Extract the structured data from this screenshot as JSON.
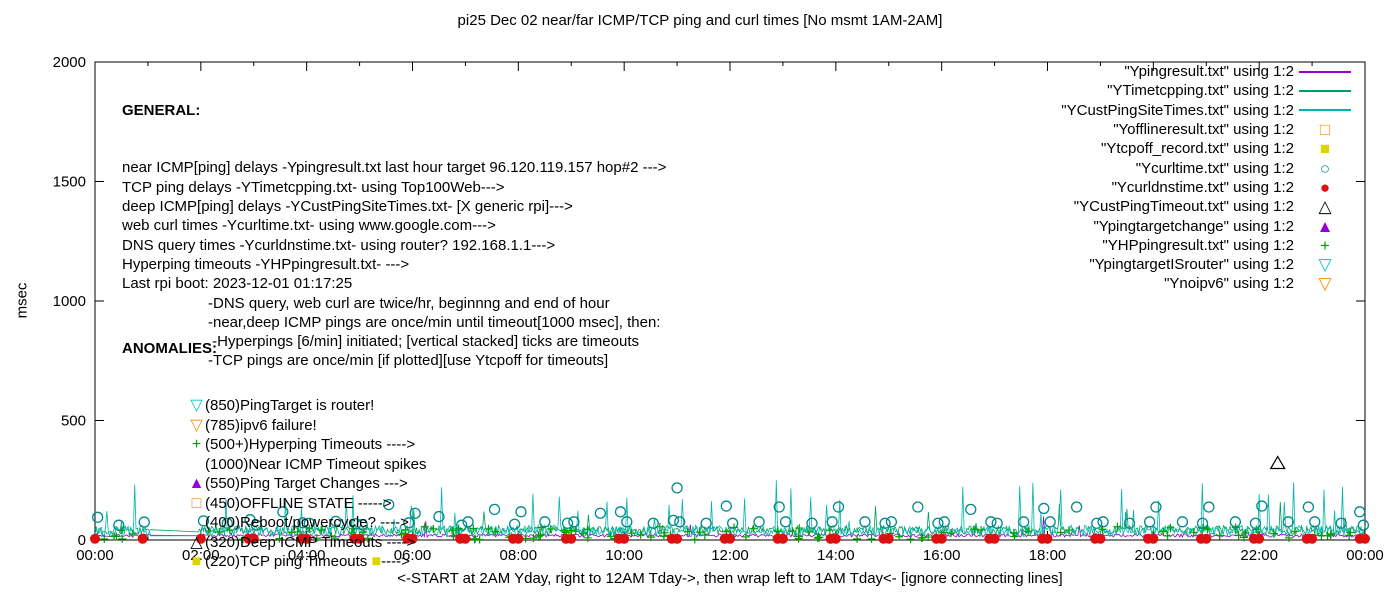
{
  "chart_data": {
    "type": "line",
    "title": "pi25 Dec 02  near/far ICMP/TCP ping and curl times [No msmt 1AM-2AM]",
    "xlabel": "<-START at 2AM Yday, right to 12AM Tday->, then wrap left to 1AM Tday<- [ignore connecting lines]",
    "ylabel": "msec",
    "xlim": [
      0,
      24
    ],
    "ylim": [
      0,
      2000
    ],
    "grid": false,
    "legend_position": "top-right",
    "x_ticks": [
      {
        "t": 0,
        "label": "00:00"
      },
      {
        "t": 2,
        "label": "02:00"
      },
      {
        "t": 4,
        "label": "04:00"
      },
      {
        "t": 6,
        "label": "06:00"
      },
      {
        "t": 8,
        "label": "08:00"
      },
      {
        "t": 10,
        "label": "10:00"
      },
      {
        "t": 12,
        "label": "12:00"
      },
      {
        "t": 14,
        "label": "14:00"
      },
      {
        "t": 16,
        "label": "16:00"
      },
      {
        "t": 18,
        "label": "18:00"
      },
      {
        "t": 20,
        "label": "20:00"
      },
      {
        "t": 22,
        "label": "22:00"
      },
      {
        "t": 24,
        "label": "00:00"
      }
    ],
    "y_ticks": [
      {
        "v": 0,
        "label": "0"
      },
      {
        "v": 500,
        "label": "500"
      },
      {
        "v": 1000,
        "label": "1000"
      },
      {
        "v": 1500,
        "label": "1500"
      },
      {
        "v": 2000,
        "label": "2000"
      }
    ],
    "no_measurement_window_hours": [
      1,
      2
    ],
    "seed": 7,
    "noise_series": [
      {
        "name": "Ypingresult.txt near ICMP delays",
        "color": "#9400d3",
        "base": 12,
        "jitter": 14,
        "spike_prob": 0.004,
        "spike_max": 80
      },
      {
        "name": "YTimetcpping.txt TCP ping delays",
        "color": "#009e60",
        "base": 22,
        "jitter": 38,
        "spike_prob": 0.012,
        "spike_max": 120
      },
      {
        "name": "YCustPingSiteTimes.txt deep ICMP delays",
        "color": "#00b5ad",
        "base": 14,
        "jitter": 48,
        "spike_prob": 0.05,
        "spike_max": 210
      }
    ],
    "hyperping_plus": {
      "name": "YHPpingresult.txt hyperping",
      "color": "#00a000",
      "count": 130,
      "ymax": 55
    },
    "curl_times": {
      "name": "Ycurltime.txt web curl times",
      "marker": "circle-open",
      "color": "#008b8b",
      "points": [
        [
          0.05,
          95
        ],
        [
          0.45,
          62
        ],
        [
          0.93,
          75
        ],
        [
          2.05,
          80
        ],
        [
          2.5,
          70
        ],
        [
          2.93,
          85
        ],
        [
          3.05,
          62
        ],
        [
          3.55,
          118
        ],
        [
          3.93,
          72
        ],
        [
          4.05,
          70
        ],
        [
          4.55,
          78
        ],
        [
          4.93,
          68
        ],
        [
          5.05,
          64
        ],
        [
          5.55,
          148
        ],
        [
          5.93,
          72
        ],
        [
          6.05,
          112
        ],
        [
          6.5,
          98
        ],
        [
          6.93,
          62
        ],
        [
          7.05,
          76
        ],
        [
          7.55,
          128
        ],
        [
          7.93,
          66
        ],
        [
          8.05,
          118
        ],
        [
          8.5,
          76
        ],
        [
          8.93,
          70
        ],
        [
          9.05,
          76
        ],
        [
          9.55,
          112
        ],
        [
          9.93,
          118
        ],
        [
          10.05,
          76
        ],
        [
          10.55,
          70
        ],
        [
          10.93,
          82
        ],
        [
          11.0,
          218
        ],
        [
          11.05,
          76
        ],
        [
          11.55,
          70
        ],
        [
          11.93,
          142
        ],
        [
          12.05,
          70
        ],
        [
          12.55,
          76
        ],
        [
          12.93,
          138
        ],
        [
          13.05,
          76
        ],
        [
          13.55,
          70
        ],
        [
          13.93,
          76
        ],
        [
          14.05,
          138
        ],
        [
          14.55,
          76
        ],
        [
          14.93,
          70
        ],
        [
          15.05,
          76
        ],
        [
          15.55,
          138
        ],
        [
          15.93,
          70
        ],
        [
          16.05,
          76
        ],
        [
          16.55,
          128
        ],
        [
          16.93,
          76
        ],
        [
          17.05,
          70
        ],
        [
          17.55,
          76
        ],
        [
          17.93,
          132
        ],
        [
          18.05,
          76
        ],
        [
          18.55,
          138
        ],
        [
          18.93,
          70
        ],
        [
          19.05,
          76
        ],
        [
          19.55,
          70
        ],
        [
          19.93,
          76
        ],
        [
          20.05,
          138
        ],
        [
          20.55,
          76
        ],
        [
          20.93,
          70
        ],
        [
          21.05,
          138
        ],
        [
          21.55,
          76
        ],
        [
          21.93,
          70
        ],
        [
          22.05,
          142
        ],
        [
          22.55,
          76
        ],
        [
          22.93,
          138
        ],
        [
          23.05,
          76
        ],
        [
          23.55,
          70
        ],
        [
          23.9,
          118
        ],
        [
          23.97,
          62
        ]
      ]
    },
    "dns_times": {
      "name": "Ycurldnstime.txt DNS query times",
      "marker": "circle-filled",
      "color": "#dd1111",
      "y": 5,
      "hours": [
        0,
        0.9,
        2,
        2.9,
        3,
        3.9,
        4,
        4.9,
        5,
        5.9,
        6,
        6.9,
        7,
        7.9,
        8,
        8.9,
        9,
        9.9,
        10,
        10.9,
        11,
        11.9,
        12,
        12.9,
        13,
        13.9,
        14,
        14.9,
        15,
        15.9,
        16,
        16.9,
        17,
        17.9,
        18,
        18.9,
        19,
        19.9,
        20,
        20.9,
        21,
        21.9,
        22,
        22.9,
        23,
        23.9,
        24
      ]
    },
    "deep_icmp_timeouts": {
      "name": "YCustPingTimeout.txt",
      "marker": "triangle-open",
      "color": "#000000",
      "points": [
        [
          22.35,
          320
        ]
      ]
    }
  },
  "general": {
    "header": "GENERAL:",
    "lines": [
      {
        "text": "near ICMP[ping] delays -Ypingresult.txt last hour target 96.120.119.157 hop#2 --->",
        "indent": false
      },
      {
        "text": "TCP ping delays -YTimetcpping.txt- using Top100Web--->",
        "indent": false
      },
      {
        "text": "deep ICMP[ping] delays -YCustPingSiteTimes.txt- [X generic rpi]--->",
        "indent": false
      },
      {
        "text": "web curl times -Ycurltime.txt- using www.google.com--->",
        "indent": false
      },
      {
        "text": "DNS query times -Ycurldnstime.txt- using router? 192.168.1.1--->",
        "indent": false
      },
      {
        "text": "Hyperping timeouts -YHPpingresult.txt- --->",
        "indent": false
      },
      {
        "text": "Last rpi boot: 2023-12-01 01:17:25",
        "indent": false
      },
      {
        "text": "-DNS query, web curl are twice/hr, beginnng and end of hour",
        "indent": true
      },
      {
        "text": "-near,deep ICMP pings are once/min until timeout[1000 msec], then:",
        "indent": true
      },
      {
        "text": " -Hyperpings [6/min] initiated; [vertical stacked] ticks are timeouts",
        "indent": true
      },
      {
        "text": "-TCP pings are once/min [if plotted][use Ytcpoff for timeouts]",
        "indent": true
      }
    ]
  },
  "anomalies": {
    "header": "ANOMALIES:",
    "items": [
      {
        "marker": "▽",
        "color": "#00c5cd",
        "text": "(850)PingTarget is router!",
        "trail_marker": "",
        "trail_color": "",
        "text2": ""
      },
      {
        "marker": "▽",
        "color": "#ff8c00",
        "text": "(785)ipv6 failure!",
        "trail_marker": "",
        "trail_color": "",
        "text2": ""
      },
      {
        "marker": "+",
        "color": "#00a000",
        "text": "(500+)Hyperping Timeouts ---->",
        "trail_marker": "",
        "trail_color": "",
        "text2": ""
      },
      {
        "marker": "",
        "color": "#000000",
        "text": "(1000)Near ICMP Timeout spikes",
        "trail_marker": "",
        "trail_color": "",
        "text2": ""
      },
      {
        "marker": "▲",
        "color": "#9400d3",
        "text": "(550)Ping Target Changes --->",
        "trail_marker": "",
        "trail_color": "",
        "text2": ""
      },
      {
        "marker": "□",
        "color": "#ff8c00",
        "text": "(450)OFFLINE STATE ----->",
        "trail_marker": "",
        "trail_color": "",
        "text2": ""
      },
      {
        "marker": "",
        "color": "#000000",
        "text": "(400)Reboot/powercycle? ---->",
        "trail_marker": "",
        "trail_color": "",
        "text2": ""
      },
      {
        "marker": "△",
        "color": "#000000",
        "text": "(320)Deep ICMP Timeouts ---->",
        "trail_marker": "",
        "trail_color": "",
        "text2": ""
      },
      {
        "marker": "■",
        "color": "#ddd500",
        "text": "(220)TCP ping Timeouts ",
        "trail_marker": "■",
        "trail_color": "#ddd500",
        "text2": "---->"
      }
    ]
  },
  "legend": {
    "entries": [
      {
        "label": "\"Ypingresult.txt\" using 1:2",
        "sample": "line",
        "glyph": "",
        "color": "#9400d3"
      },
      {
        "label": "\"YTimetcpping.txt\" using 1:2",
        "sample": "line",
        "glyph": "",
        "color": "#009e60"
      },
      {
        "label": "\"YCustPingSiteTimes.txt\" using 1:2",
        "sample": "line",
        "glyph": "",
        "color": "#00b5ad"
      },
      {
        "label": "\"Yofflineresult.txt\" using 1:2",
        "sample": "glyph",
        "glyph": "□",
        "color": "#ff8c00"
      },
      {
        "label": "\"Ytcpoff_record.txt\" using 1:2",
        "sample": "glyph",
        "glyph": "■",
        "color": "#ddd500"
      },
      {
        "label": "\"Ycurltime.txt\" using 1:2",
        "sample": "glyph",
        "glyph": "○",
        "color": "#008b8b"
      },
      {
        "label": "\"Ycurldnstime.txt\" using 1:2",
        "sample": "glyph",
        "glyph": "●",
        "color": "#dd1111"
      },
      {
        "label": "\"YCustPingTimeout.txt\" using 1:2",
        "sample": "glyph",
        "glyph": "△",
        "color": "#000000"
      },
      {
        "label": "\"Ypingtargetchange\" using 1:2",
        "sample": "glyph",
        "glyph": "▲",
        "color": "#9400d3"
      },
      {
        "label": "\"YHPpingresult.txt\" using 1:2",
        "sample": "glyph",
        "glyph": "+",
        "color": "#00a000"
      },
      {
        "label": "\"YpingtargetISrouter\" using 1:2",
        "sample": "glyph",
        "glyph": "▽",
        "color": "#00c5cd"
      },
      {
        "label": "\"Ynoipv6\" using 1:2",
        "sample": "glyph",
        "glyph": "▽",
        "color": "#ff8c00"
      }
    ]
  }
}
